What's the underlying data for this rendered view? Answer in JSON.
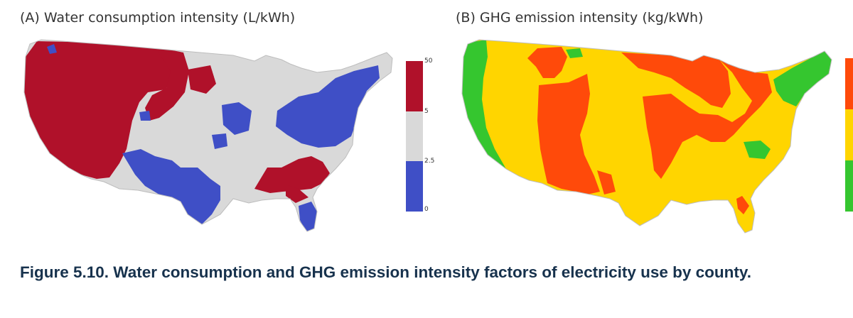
{
  "panels": [
    {
      "title": "(A) Water consumption intensity (L/kWh)",
      "legend": {
        "ticks": [
          "50",
          "5",
          "2.5",
          "0"
        ],
        "colors": [
          "#b0112a",
          "#d9d9d9",
          "#3f4fc6"
        ]
      }
    },
    {
      "title": "(B) GHG emission intensity (kg/kWh)",
      "legend": {
        "ticks": [],
        "colors": [
          "#ff4a0a",
          "#ffd500",
          "#35c62f"
        ]
      }
    }
  ],
  "caption": "Figure 5.10.  Water consumption and GHG emission intensity factors of electricity use by county."
}
